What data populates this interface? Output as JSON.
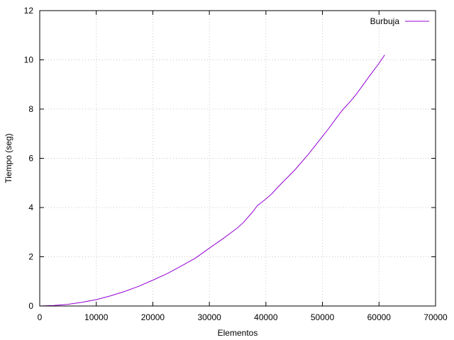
{
  "chart_data": {
    "type": "line",
    "xlabel": "Elementos",
    "ylabel": "Tiempo (seg)",
    "xlim": [
      0,
      70000
    ],
    "ylim": [
      0,
      12
    ],
    "xticks": [
      0,
      10000,
      20000,
      30000,
      40000,
      50000,
      60000,
      70000
    ],
    "yticks": [
      0,
      2,
      4,
      6,
      8,
      10,
      12
    ],
    "xtick_labels": [
      "0",
      "10000",
      "20000",
      "30000",
      "40000",
      "50000",
      "60000",
      "70000"
    ],
    "ytick_labels": [
      "0",
      "2",
      "4",
      "6",
      "8",
      "10",
      "12"
    ],
    "grid": true,
    "legend_position": "top-right",
    "series": [
      {
        "name": "Burbuja",
        "color": "#9400d3",
        "x": [
          0,
          2500,
          5000,
          7500,
          10000,
          12500,
          15000,
          17500,
          20000,
          22500,
          25000,
          27500,
          30000,
          32500,
          35000,
          36000,
          37500,
          38500,
          40000,
          41000,
          42500,
          45000,
          47500,
          50000,
          51000,
          52500,
          53500,
          55000,
          56000,
          57500,
          58500,
          60000,
          61000
        ],
        "y": [
          0,
          0.02,
          0.07,
          0.15,
          0.26,
          0.41,
          0.59,
          0.8,
          1.05,
          1.31,
          1.62,
          1.94,
          2.35,
          2.75,
          3.18,
          3.39,
          3.78,
          4.08,
          4.35,
          4.55,
          4.92,
          5.5,
          6.16,
          6.89,
          7.18,
          7.65,
          7.95,
          8.33,
          8.61,
          9.08,
          9.4,
          9.86,
          10.2
        ]
      }
    ]
  }
}
